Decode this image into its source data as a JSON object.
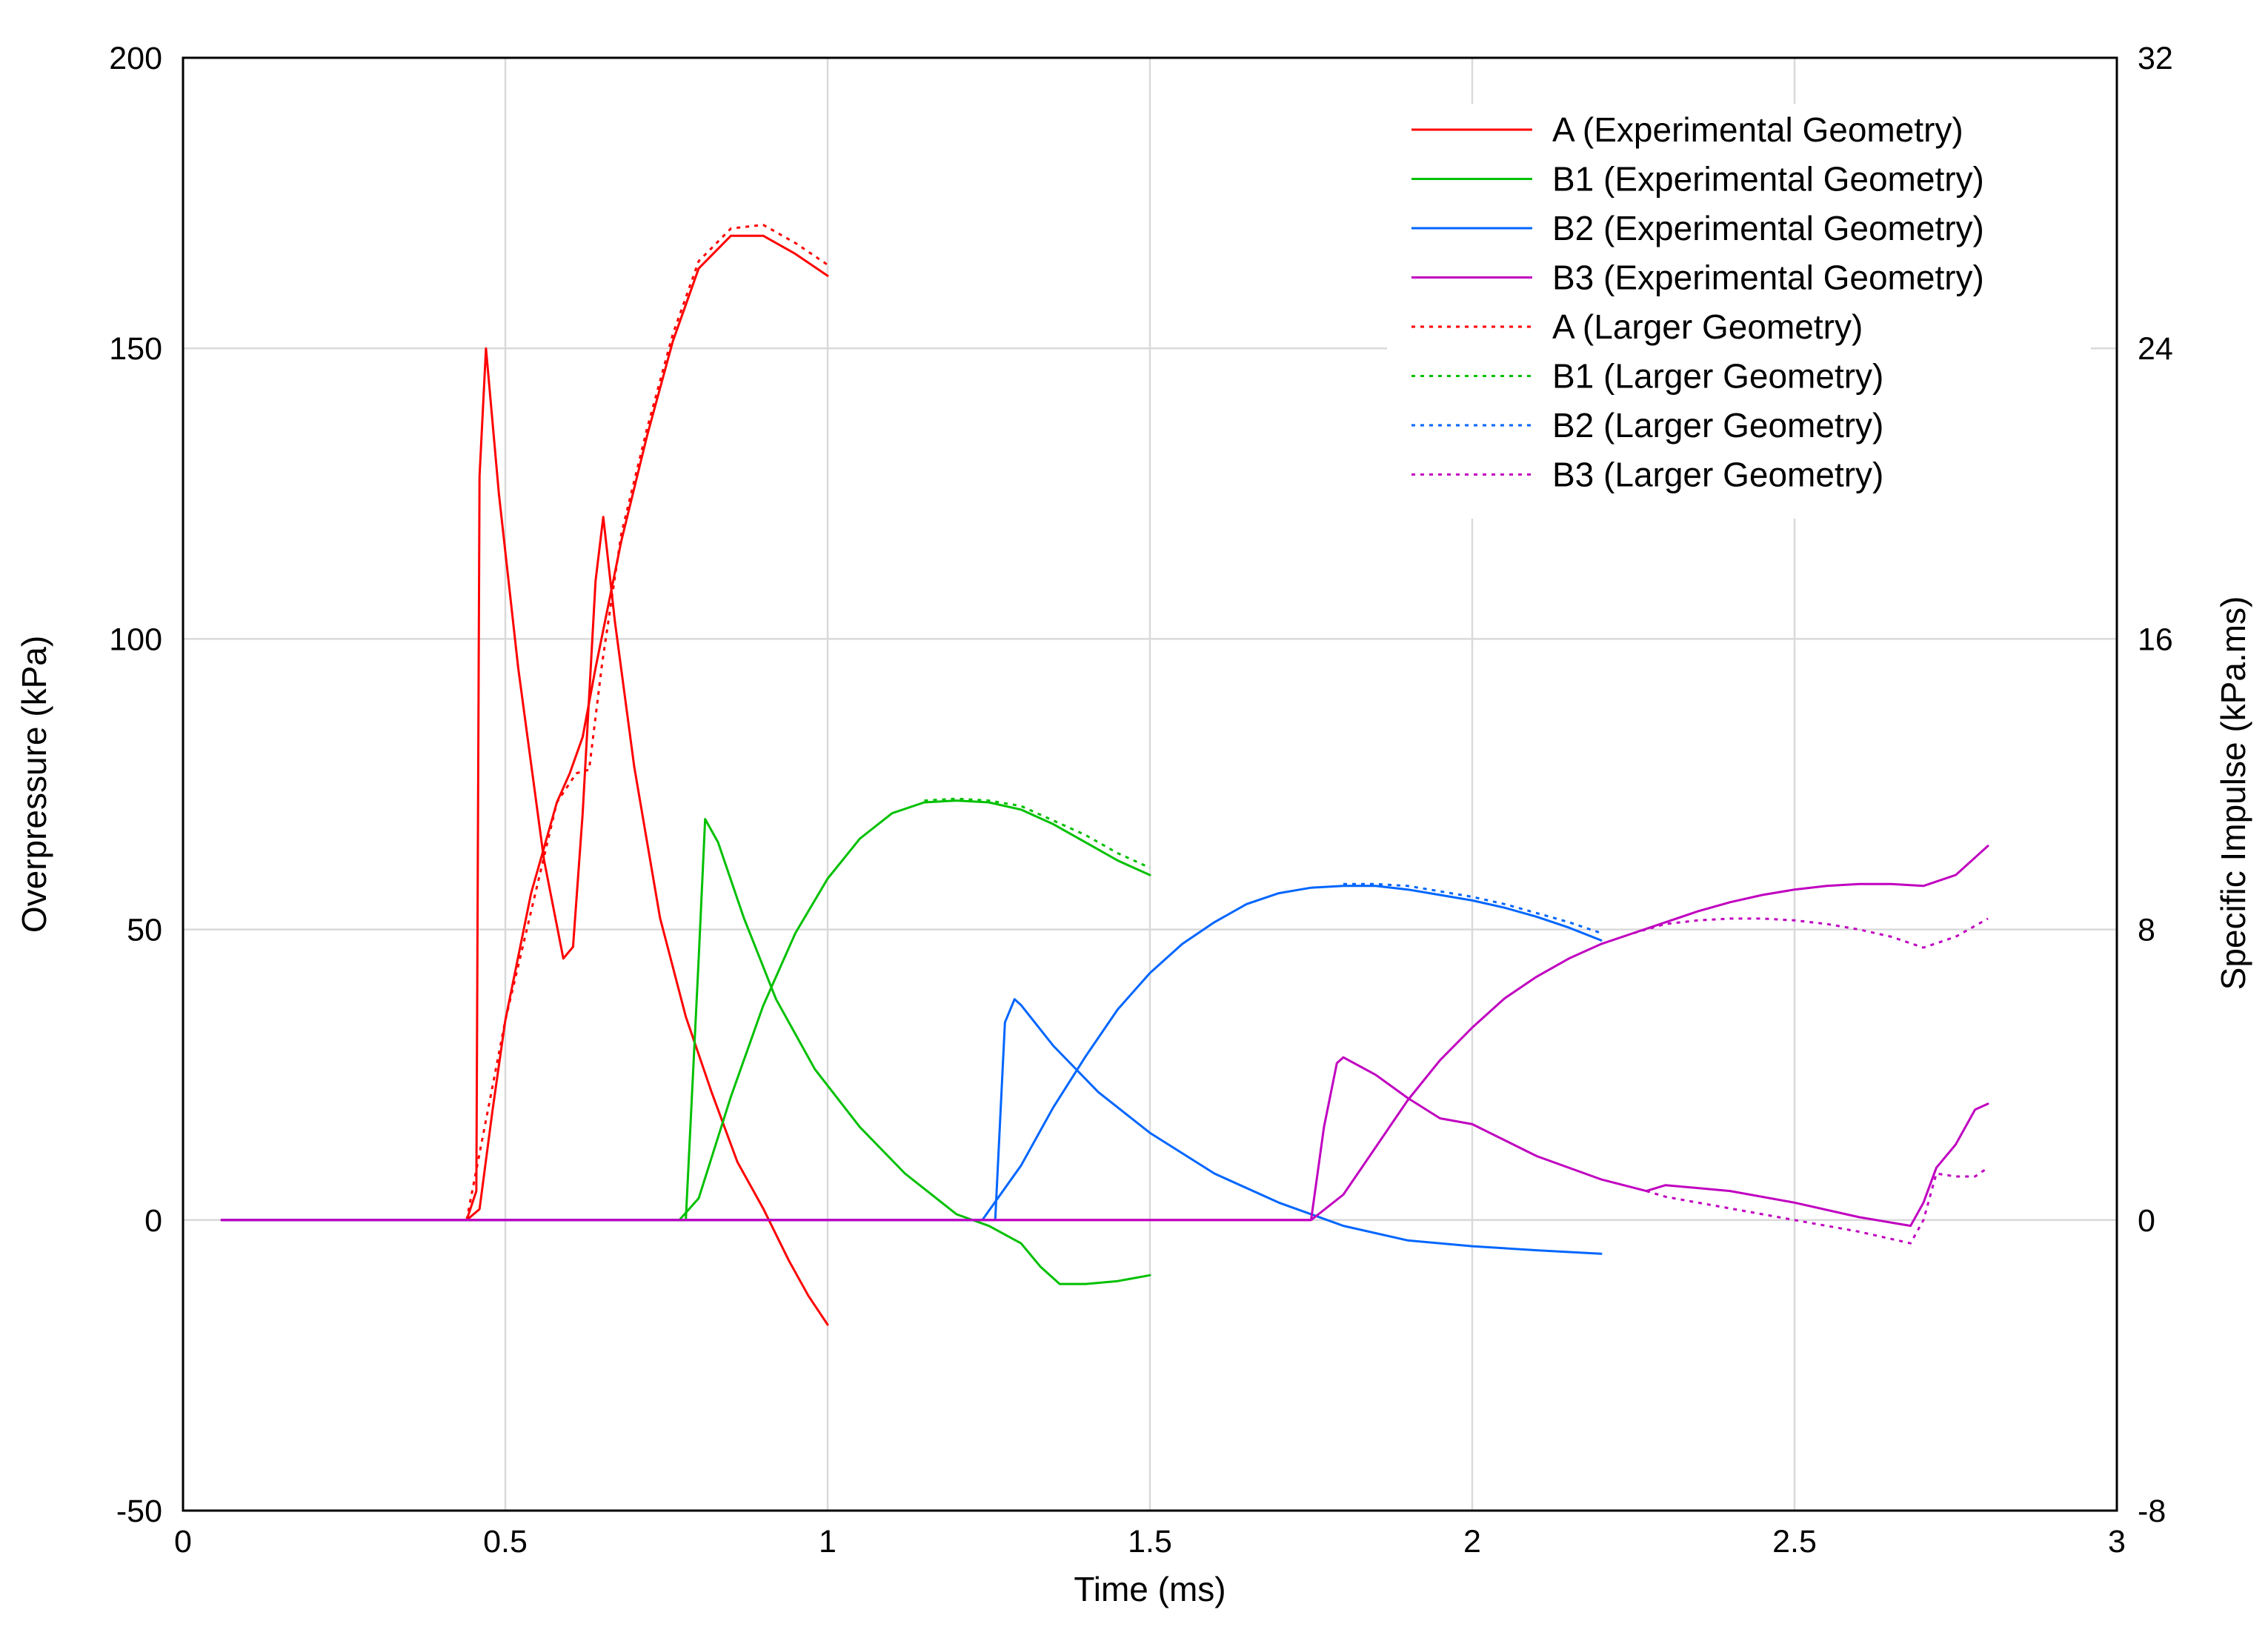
{
  "chart_data": {
    "type": "line",
    "xlabel": "Time (ms)",
    "ylabel": "Overpressure (kPa)",
    "y2label": "Specific Impulse (kPa.ms)",
    "xlim": [
      0,
      3
    ],
    "ylim": [
      -50,
      200
    ],
    "y2lim": [
      -8,
      32
    ],
    "xticks": [
      "0",
      "0.5",
      "1",
      "1.5",
      "2",
      "2.5",
      "3"
    ],
    "yticks": [
      "-50",
      "0",
      "50",
      "100",
      "150",
      "200"
    ],
    "y2ticks": [
      "-8",
      "0",
      "8",
      "16",
      "24",
      "32"
    ],
    "grid": true,
    "legend_position": "top-right",
    "legend": [
      {
        "label": "A (Experimental Geometry)",
        "color": "#ff0000",
        "style": "solid"
      },
      {
        "label": "B1 (Experimental Geometry)",
        "color": "#00c000",
        "style": "solid"
      },
      {
        "label": "B2 (Experimental Geometry)",
        "color": "#0066ff",
        "style": "solid"
      },
      {
        "label": "B3 (Experimental Geometry)",
        "color": "#c000c0",
        "style": "solid"
      },
      {
        "label": "A (Larger Geometry)",
        "color": "#ff0000",
        "style": "dotted"
      },
      {
        "label": "B1 (Larger Geometry)",
        "color": "#00c000",
        "style": "dotted"
      },
      {
        "label": "B2 (Larger Geometry)",
        "color": "#0066ff",
        "style": "dotted"
      },
      {
        "label": "B3 (Larger Geometry)",
        "color": "#c000c0",
        "style": "dotted"
      }
    ],
    "series": [
      {
        "name": "A (Experimental Geometry)",
        "quantity": "overpressure",
        "color": "#ff0000",
        "dash": false,
        "x": [
          0.06,
          0.44,
          0.455,
          0.46,
          0.47,
          0.49,
          0.52,
          0.56,
          0.59,
          0.605,
          0.62,
          0.64,
          0.652,
          0.67,
          0.7,
          0.74,
          0.78,
          0.82,
          0.86,
          0.9,
          0.94,
          0.97,
          1.0
        ],
        "y": [
          0,
          0,
          5,
          128,
          150,
          125,
          95,
          62,
          45,
          47,
          70,
          110,
          121,
          103,
          78,
          52,
          35,
          22,
          10,
          2,
          -7,
          -13,
          -18
        ]
      },
      {
        "name": "A (Experimental Geometry)",
        "quantity": "impulse",
        "color": "#ff0000",
        "dash": false,
        "x": [
          0.06,
          0.44,
          0.46,
          0.48,
          0.5,
          0.54,
          0.58,
          0.6,
          0.62,
          0.64,
          0.68,
          0.72,
          0.76,
          0.8,
          0.85,
          0.9,
          0.95,
          1.0
        ],
        "y": [
          0,
          0,
          0.3,
          3.0,
          5.5,
          9.0,
          11.5,
          12.3,
          13.3,
          15.2,
          18.7,
          21.6,
          24.2,
          26.2,
          27.1,
          27.1,
          26.6,
          26.0
        ]
      },
      {
        "name": "A (Larger Geometry)",
        "quantity": "impulse",
        "color": "#ff0000",
        "dash": true,
        "x": [
          0.44,
          0.5,
          0.58,
          0.61,
          0.63,
          0.65,
          0.68,
          0.72,
          0.76,
          0.8,
          0.85,
          0.9,
          0.95,
          1.0
        ],
        "y": [
          0,
          5.5,
          11.5,
          12.3,
          12.4,
          15.3,
          18.9,
          21.8,
          24.4,
          26.4,
          27.3,
          27.4,
          26.9,
          26.3
        ]
      },
      {
        "name": "B1 (Experimental Geometry)",
        "quantity": "overpressure",
        "color": "#00c000",
        "dash": false,
        "x": [
          0.06,
          0.78,
          0.8,
          0.81,
          0.83,
          0.87,
          0.92,
          0.98,
          1.05,
          1.12,
          1.2,
          1.25,
          1.3,
          1.33,
          1.36,
          1.4,
          1.45,
          1.5
        ],
        "y": [
          0,
          0,
          45,
          69,
          65,
          52,
          38,
          26,
          16,
          8,
          1,
          -1,
          -4,
          -8,
          -11,
          -11,
          -10.5,
          -9.5
        ]
      },
      {
        "name": "B1 (Experimental Geometry)",
        "quantity": "impulse",
        "color": "#00c000",
        "dash": false,
        "x": [
          0.06,
          0.77,
          0.8,
          0.85,
          0.9,
          0.95,
          1.0,
          1.05,
          1.1,
          1.15,
          1.2,
          1.25,
          1.3,
          1.35,
          1.4,
          1.45,
          1.5
        ],
        "y": [
          0,
          0,
          0.6,
          3.4,
          5.9,
          7.9,
          9.4,
          10.5,
          11.2,
          11.5,
          11.55,
          11.5,
          11.3,
          10.9,
          10.4,
          9.9,
          9.5
        ]
      },
      {
        "name": "B1 (Larger Geometry)",
        "quantity": "impulse",
        "color": "#00c000",
        "dash": true,
        "x": [
          1.15,
          1.2,
          1.25,
          1.3,
          1.35,
          1.4,
          1.45,
          1.5
        ],
        "y": [
          11.55,
          11.6,
          11.55,
          11.4,
          11.0,
          10.6,
          10.1,
          9.7
        ]
      },
      {
        "name": "B2 (Experimental Geometry)",
        "quantity": "overpressure",
        "color": "#0066ff",
        "dash": false,
        "x": [
          0.06,
          1.26,
          1.275,
          1.29,
          1.3,
          1.35,
          1.42,
          1.5,
          1.6,
          1.7,
          1.8,
          1.9,
          2.0,
          2.1,
          2.2
        ],
        "y": [
          0,
          0,
          34,
          38,
          37,
          30,
          22,
          15,
          8,
          3,
          -1,
          -3.5,
          -4.5,
          -5.2,
          -5.8
        ]
      },
      {
        "name": "B2 (Experimental Geometry)",
        "quantity": "impulse",
        "color": "#0066ff",
        "dash": false,
        "x": [
          0.06,
          1.24,
          1.3,
          1.35,
          1.4,
          1.45,
          1.5,
          1.55,
          1.6,
          1.65,
          1.7,
          1.75,
          1.8,
          1.85,
          1.9,
          1.95,
          2.0,
          2.05,
          2.1,
          2.15,
          2.2
        ],
        "y": [
          0,
          0,
          1.5,
          3.1,
          4.5,
          5.8,
          6.8,
          7.6,
          8.2,
          8.7,
          9.0,
          9.15,
          9.2,
          9.2,
          9.1,
          8.95,
          8.8,
          8.6,
          8.35,
          8.05,
          7.7
        ]
      },
      {
        "name": "B2 (Larger Geometry)",
        "quantity": "impulse",
        "color": "#0066ff",
        "dash": true,
        "x": [
          1.8,
          1.85,
          1.9,
          1.95,
          2.0,
          2.05,
          2.1,
          2.15,
          2.2
        ],
        "y": [
          9.25,
          9.25,
          9.2,
          9.05,
          8.9,
          8.7,
          8.45,
          8.2,
          7.9
        ]
      },
      {
        "name": "B3 (Experimental Geometry)",
        "quantity": "overpressure",
        "color": "#c000c0",
        "dash": false,
        "x": [
          0.06,
          1.75,
          1.77,
          1.79,
          1.8,
          1.85,
          1.9,
          1.95,
          2.0,
          2.1,
          2.2,
          2.27,
          2.3,
          2.4,
          2.5,
          2.6,
          2.68,
          2.7,
          2.72,
          2.75,
          2.78,
          2.8
        ],
        "y": [
          0,
          0,
          16,
          27,
          28,
          25,
          21,
          17.5,
          16.5,
          11,
          7,
          5,
          6,
          5,
          3,
          0.5,
          -1,
          3,
          9,
          13,
          19,
          20
        ]
      },
      {
        "name": "B3 (Experimental Geometry)",
        "quantity": "impulse",
        "color": "#c000c0",
        "dash": false,
        "x": [
          0.06,
          1.75,
          1.8,
          1.85,
          1.9,
          1.95,
          2.0,
          2.05,
          2.1,
          2.15,
          2.2,
          2.25,
          2.3,
          2.35,
          2.4,
          2.45,
          2.5,
          2.55,
          2.6,
          2.65,
          2.7,
          2.75,
          2.8
        ],
        "y": [
          0,
          0,
          0.7,
          2.0,
          3.3,
          4.4,
          5.3,
          6.1,
          6.7,
          7.2,
          7.6,
          7.9,
          8.2,
          8.5,
          8.75,
          8.95,
          9.1,
          9.2,
          9.25,
          9.25,
          9.2,
          9.5,
          10.3
        ]
      },
      {
        "name": "B3 (Larger Geometry)",
        "quantity": "overpressure",
        "color": "#c000c0",
        "dash": true,
        "x": [
          2.27,
          2.3,
          2.4,
          2.5,
          2.6,
          2.68,
          2.7,
          2.72,
          2.75,
          2.78,
          2.8
        ],
        "y": [
          5,
          4,
          2,
          0,
          -2,
          -4,
          0,
          8,
          7.5,
          7.5,
          9
        ]
      },
      {
        "name": "B3 (Larger Geometry)",
        "quantity": "impulse",
        "color": "#c000c0",
        "dash": true,
        "x": [
          2.25,
          2.3,
          2.35,
          2.4,
          2.45,
          2.5,
          2.55,
          2.6,
          2.65,
          2.7,
          2.75,
          2.8
        ],
        "y": [
          7.9,
          8.15,
          8.25,
          8.3,
          8.3,
          8.25,
          8.15,
          8.0,
          7.8,
          7.5,
          7.8,
          8.3
        ]
      }
    ]
  }
}
